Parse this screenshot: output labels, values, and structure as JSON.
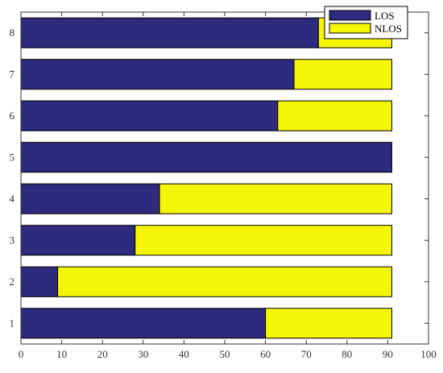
{
  "chart_data": {
    "type": "bar",
    "orientation": "horizontal",
    "stacked": true,
    "categories": [
      "1",
      "2",
      "3",
      "4",
      "5",
      "6",
      "7",
      "8"
    ],
    "series": [
      {
        "name": "LOS",
        "values": [
          60,
          9,
          28,
          34,
          91,
          63,
          67,
          73
        ],
        "color": "#2e2a7e"
      },
      {
        "name": "NLOS",
        "values": [
          31,
          82,
          63,
          57,
          0,
          28,
          24,
          18
        ],
        "color": "#f5f507"
      }
    ],
    "xlim": [
      0,
      100
    ],
    "xticks": [
      0,
      10,
      20,
      30,
      40,
      50,
      60,
      70,
      80,
      90,
      100
    ],
    "ylim": [
      0.5,
      8.5
    ],
    "yticks": [
      1,
      2,
      3,
      4,
      5,
      6,
      7,
      8
    ],
    "title": "",
    "xlabel": "",
    "ylabel": "",
    "grid": false,
    "legend_position": "top-right"
  }
}
